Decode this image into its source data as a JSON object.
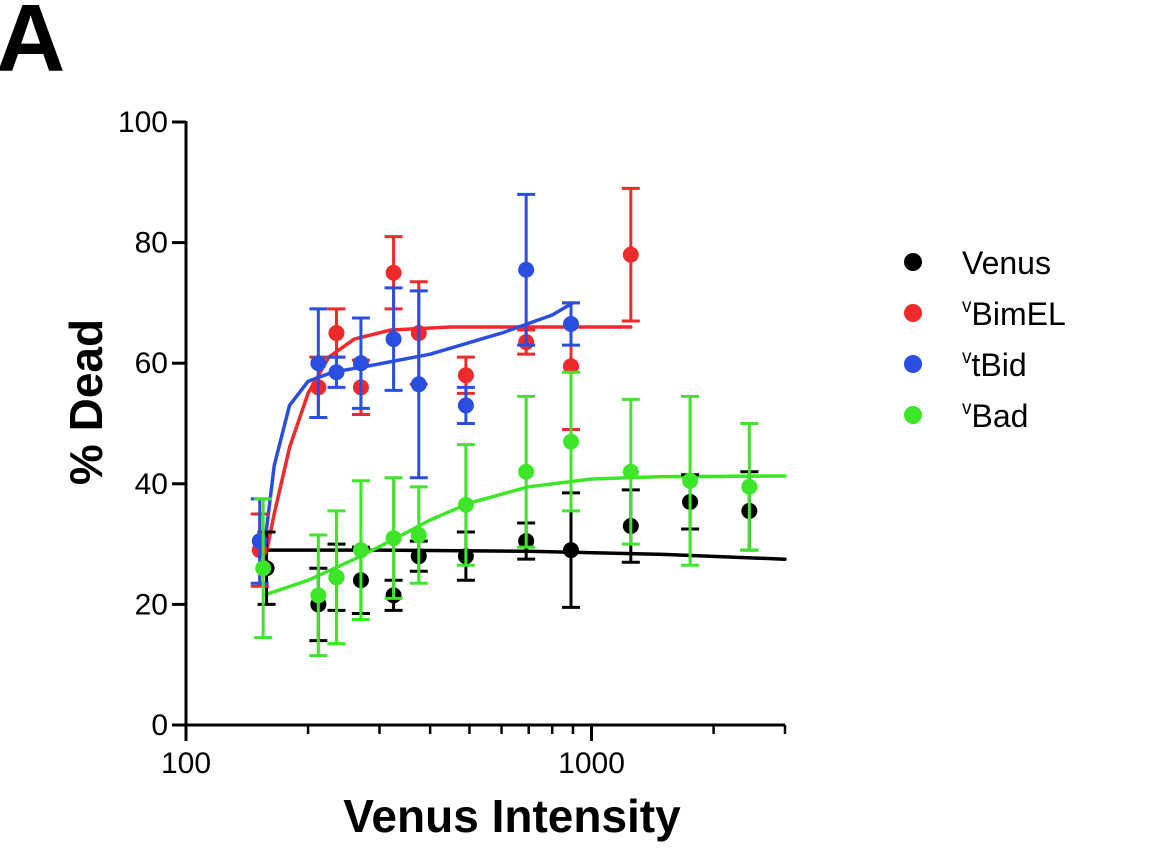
{
  "panel_label": "A",
  "chart_data": {
    "type": "scatter",
    "xlabel": "Venus Intensity",
    "ylabel": "% Dead",
    "x_scale": "log",
    "xlim": [
      100,
      3000
    ],
    "ylim": [
      0,
      100
    ],
    "x_ticks": [
      100,
      1000
    ],
    "x_tick_labels": [
      "100",
      "1000"
    ],
    "y_ticks": [
      0,
      20,
      40,
      60,
      80,
      100
    ],
    "y_tick_labels": [
      "0",
      "20",
      "40",
      "60",
      "80",
      "100"
    ],
    "grid": false,
    "legend_position": "right",
    "series": [
      {
        "name": "Venus",
        "legend_label": "Venus",
        "legend_sup": "",
        "color": "#000000",
        "points": [
          {
            "x": 158,
            "y": 26,
            "err": 6
          },
          {
            "x": 212,
            "y": 20,
            "err": 6
          },
          {
            "x": 235,
            "y": 24.5,
            "err": 5.5
          },
          {
            "x": 270,
            "y": 24,
            "err": 5.5
          },
          {
            "x": 325,
            "y": 21.5,
            "err": 2.5
          },
          {
            "x": 375,
            "y": 28,
            "err": 2.5
          },
          {
            "x": 490,
            "y": 28,
            "err": 4
          },
          {
            "x": 690,
            "y": 30.5,
            "err": 3
          },
          {
            "x": 890,
            "y": 29,
            "err": 9.5
          },
          {
            "x": 1250,
            "y": 33,
            "err": 6
          },
          {
            "x": 1750,
            "y": 37,
            "err": 4.5
          },
          {
            "x": 2450,
            "y": 35.5,
            "err": 6.5
          }
        ],
        "fit": [
          [
            158,
            29
          ],
          [
            300,
            29
          ],
          [
            700,
            28.8
          ],
          [
            1500,
            28.3
          ],
          [
            3000,
            27.5
          ]
        ]
      },
      {
        "name": "vBimEL",
        "legend_label": "BimEL",
        "legend_sup": "v",
        "color": "#ee2a2a",
        "points": [
          {
            "x": 152,
            "y": 29,
            "err": 6
          },
          {
            "x": 212,
            "y": 56,
            "err": 5
          },
          {
            "x": 235,
            "y": 65,
            "err": 4
          },
          {
            "x": 270,
            "y": 56,
            "err": 4.5
          },
          {
            "x": 325,
            "y": 75,
            "err": 6
          },
          {
            "x": 375,
            "y": 65,
            "err": 8.5
          },
          {
            "x": 490,
            "y": 58,
            "err": 3
          },
          {
            "x": 690,
            "y": 63.5,
            "err": 2
          },
          {
            "x": 890,
            "y": 59.5,
            "err": 10.5
          },
          {
            "x": 1250,
            "y": 78,
            "err": 11
          }
        ],
        "fit": [
          [
            155,
            26
          ],
          [
            165,
            35
          ],
          [
            180,
            46
          ],
          [
            200,
            55
          ],
          [
            225,
            61
          ],
          [
            260,
            64
          ],
          [
            320,
            65.5
          ],
          [
            450,
            66
          ],
          [
            800,
            66
          ],
          [
            1250,
            66
          ]
        ]
      },
      {
        "name": "vtBid",
        "legend_label": "tBid",
        "legend_sup": "v",
        "color": "#2a4fe0",
        "points": [
          {
            "x": 152,
            "y": 30.5,
            "err": 7
          },
          {
            "x": 212,
            "y": 60,
            "err": 9
          },
          {
            "x": 235,
            "y": 58.5,
            "err": 2.5
          },
          {
            "x": 270,
            "y": 60,
            "err": 7.5
          },
          {
            "x": 325,
            "y": 64,
            "err": 8.5
          },
          {
            "x": 375,
            "y": 56.5,
            "err": 15.5
          },
          {
            "x": 490,
            "y": 53,
            "err": 3
          },
          {
            "x": 690,
            "y": 75.5,
            "err": 12.5
          },
          {
            "x": 890,
            "y": 66.5,
            "err": 3.5
          }
        ],
        "fit": [
          [
            155,
            28
          ],
          [
            165,
            43
          ],
          [
            180,
            53
          ],
          [
            200,
            57
          ],
          [
            230,
            58.5
          ],
          [
            280,
            59.5
          ],
          [
            400,
            61.5
          ],
          [
            600,
            65
          ],
          [
            800,
            68
          ],
          [
            900,
            70
          ]
        ]
      },
      {
        "name": "vBad",
        "legend_label": "Bad",
        "legend_sup": "v",
        "color": "#3ee62a",
        "points": [
          {
            "x": 155,
            "y": 26,
            "err": 11.5
          },
          {
            "x": 212,
            "y": 21.5,
            "err": 10
          },
          {
            "x": 235,
            "y": 24.5,
            "err": 11
          },
          {
            "x": 270,
            "y": 29,
            "err": 11.5
          },
          {
            "x": 325,
            "y": 31,
            "err": 10
          },
          {
            "x": 375,
            "y": 31.5,
            "err": 8
          },
          {
            "x": 490,
            "y": 36.5,
            "err": 10
          },
          {
            "x": 690,
            "y": 42,
            "err": 12.5
          },
          {
            "x": 890,
            "y": 47,
            "err": 11.5
          },
          {
            "x": 1250,
            "y": 42,
            "err": 12
          },
          {
            "x": 1750,
            "y": 40.5,
            "err": 14
          },
          {
            "x": 2450,
            "y": 39.5,
            "err": 10.5
          }
        ],
        "fit": [
          [
            155,
            21.5
          ],
          [
            200,
            24
          ],
          [
            260,
            27.5
          ],
          [
            330,
            31
          ],
          [
            400,
            34
          ],
          [
            500,
            36.8
          ],
          [
            700,
            39.5
          ],
          [
            1000,
            40.8
          ],
          [
            1500,
            41.2
          ],
          [
            3000,
            41.3
          ]
        ]
      }
    ]
  }
}
